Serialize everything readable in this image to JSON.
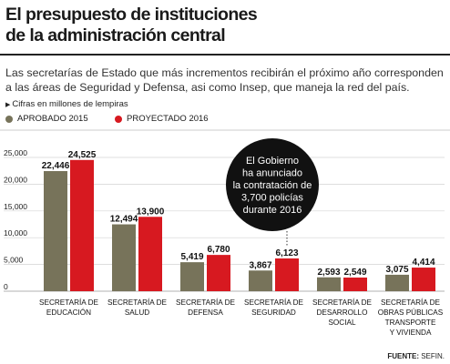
{
  "header": {
    "title_line1": "El presupuesto  de instituciones",
    "title_line2": "de la administración central",
    "subtitle": "Las secretarías de Estado que más incrementos recibirán el próximo año corresponden a las áreas de Seguridad y Defensa, asi como Insep, que maneja la red del país.",
    "units_label": "Cifras en millones de lempiras"
  },
  "colors": {
    "aprobado": "#77735a",
    "proyectado": "#d71920",
    "callout_bg": "#111111"
  },
  "callout": {
    "lines": [
      "El Gobierno",
      "ha anunciado",
      "la contratación de",
      "3,700 policías",
      "durante 2016"
    ]
  },
  "source": {
    "prefix": "FUENTE:",
    "text": " SEFIN."
  },
  "chart_data": {
    "type": "bar",
    "title": "",
    "xlabel": "",
    "ylabel": "",
    "ylim": [
      0,
      25000
    ],
    "yticks": [
      0,
      5000,
      10000,
      15000,
      20000,
      25000
    ],
    "ytick_labels": [
      "0",
      "5,000",
      "10,000",
      "15,000",
      "20,000",
      "25,000"
    ],
    "grid": true,
    "legend_position": "top-left",
    "categories": [
      [
        "SECRETARÍA DE",
        "EDUCACIÓN"
      ],
      [
        "SECRETARÍA DE",
        "SALUD"
      ],
      [
        "SECRETARÍA DE",
        "DEFENSA"
      ],
      [
        "SECRETARÍA DE",
        "SEGURIDAD"
      ],
      [
        "SECRETARÍA DE",
        "DESARROLLO",
        "SOCIAL"
      ],
      [
        "SECRETARÍA DE",
        "OBRAS PÚBLICAS",
        "TRANSPORTE",
        "Y VIVIENDA"
      ]
    ],
    "series": [
      {
        "name": "APROBADO 2015",
        "values": [
          22446,
          12494,
          5419,
          3867,
          2593,
          3075
        ],
        "labels": [
          "22,446",
          "12,494",
          "5,419",
          "3,867",
          "2,593",
          "3,075"
        ]
      },
      {
        "name": "PROYECTADO 2016",
        "values": [
          24525,
          13900,
          6780,
          6123,
          2549,
          4414
        ],
        "labels": [
          "24,525",
          "13,900",
          "6,780",
          "6,123",
          "2,549",
          "4,414"
        ]
      }
    ]
  }
}
